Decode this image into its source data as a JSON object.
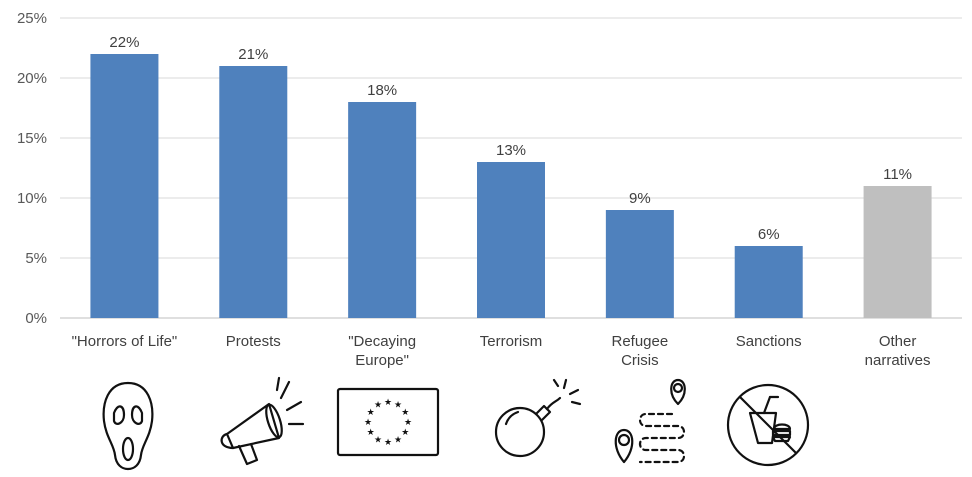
{
  "chart_data": {
    "type": "bar",
    "categories": [
      [
        "\"Horrors of Life\""
      ],
      [
        "Protests"
      ],
      [
        "\"Decaying",
        "Europe\""
      ],
      [
        "Terrorism"
      ],
      [
        "Refugee",
        "Crisis"
      ],
      [
        "Sanctions"
      ],
      [
        "Other",
        "narratives"
      ]
    ],
    "values": [
      22,
      21,
      18,
      13,
      9,
      6,
      11
    ],
    "data_labels": [
      "22%",
      "21%",
      "18%",
      "13%",
      "9%",
      "6%",
      "11%"
    ],
    "bar_colors": [
      "#4f81bd",
      "#4f81bd",
      "#4f81bd",
      "#4f81bd",
      "#4f81bd",
      "#4f81bd",
      "#bfbfbf"
    ],
    "ylim": [
      0,
      25
    ],
    "yticks": [
      0,
      5,
      10,
      15,
      20,
      25
    ],
    "ytick_labels": [
      "0%",
      "5%",
      "10%",
      "15%",
      "20%",
      "25%"
    ],
    "grid": true,
    "gridline_color": "#d9d9d9",
    "title": "",
    "xlabel": "",
    "ylabel": ""
  },
  "icons": [
    "scream-mask-icon",
    "megaphone-icon",
    "eu-flag-icon",
    "bomb-icon",
    "route-map-pins-icon",
    "no-food-icon"
  ]
}
